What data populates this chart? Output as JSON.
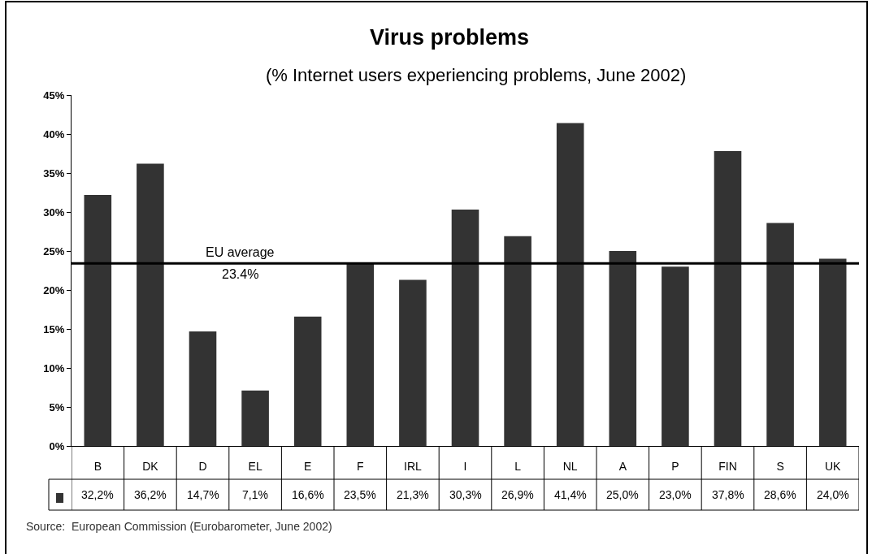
{
  "chart_data": {
    "type": "bar",
    "title": "Virus problems",
    "subtitle": "(% Internet users experiencing problems, June 2002)",
    "categories": [
      "B",
      "DK",
      "D",
      "EL",
      "E",
      "F",
      "IRL",
      "I",
      "L",
      "NL",
      "A",
      "P",
      "FIN",
      "S",
      "UK"
    ],
    "values": [
      32.2,
      36.2,
      14.7,
      7.1,
      16.6,
      23.5,
      21.3,
      30.3,
      26.9,
      41.4,
      25.0,
      23.0,
      37.8,
      28.6,
      24.0
    ],
    "value_labels": [
      "32,2%",
      "36,2%",
      "14,7%",
      "7,1%",
      "16,6%",
      "23,5%",
      "21,3%",
      "30,3%",
      "26,9%",
      "41,4%",
      "25,0%",
      "23,0%",
      "37,8%",
      "28,6%",
      "24,0%"
    ],
    "color": "#333333",
    "ylim": [
      0,
      45
    ],
    "yticks": [
      {
        "value": 0,
        "label": "0%"
      },
      {
        "value": 5,
        "label": "5%"
      },
      {
        "value": 10,
        "label": "10%"
      },
      {
        "value": 15,
        "label": "15%"
      },
      {
        "value": 20,
        "label": "20%"
      },
      {
        "value": 25,
        "label": "25%"
      },
      {
        "value": 30,
        "label": "30%"
      },
      {
        "value": 35,
        "label": "35%"
      },
      {
        "value": 40,
        "label": "40%"
      },
      {
        "value": 45,
        "label": "45%"
      }
    ],
    "ref_lines": [
      {
        "axis": "y",
        "value": 23.4,
        "label": "EU average\n23.4%",
        "color": "#000000"
      }
    ],
    "annotations": [
      "Source:  European Commission (Eurobarometer, June 2002)"
    ]
  }
}
